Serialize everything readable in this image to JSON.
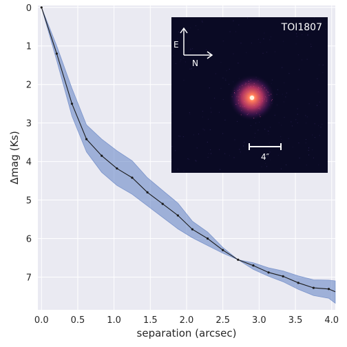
{
  "chart_data": {
    "type": "line",
    "xlabel": "separation (arcsec)",
    "ylabel": "Δmag (Ks)",
    "xlim": [
      -0.05,
      4.05
    ],
    "ylim": [
      7.85,
      -0.05
    ],
    "y_inverted": true,
    "grid": true,
    "x_ticks": [
      0.0,
      0.5,
      1.0,
      1.5,
      2.0,
      2.5,
      3.0,
      3.5,
      4.0
    ],
    "x_tick_labels": [
      "0.0",
      "0.5",
      "1.0",
      "1.5",
      "2.0",
      "2.5",
      "3.0",
      "3.5",
      "4.0"
    ],
    "y_ticks": [
      0,
      1,
      2,
      3,
      4,
      5,
      6,
      7
    ],
    "y_tick_labels": [
      "0",
      "1",
      "2",
      "3",
      "4",
      "5",
      "6",
      "7"
    ],
    "series": [
      {
        "x": [
          0.0,
          0.21,
          0.42,
          0.62,
          0.83,
          1.04,
          1.25,
          1.46,
          1.67,
          1.88,
          2.08,
          2.29,
          2.5,
          2.71,
          2.92,
          3.13,
          3.33,
          3.54,
          3.75,
          3.96,
          4.05
        ],
        "y": [
          0.0,
          1.2,
          2.5,
          3.42,
          3.85,
          4.18,
          4.42,
          4.8,
          5.1,
          5.4,
          5.76,
          6.0,
          6.3,
          6.55,
          6.7,
          6.88,
          6.98,
          7.15,
          7.28,
          7.31,
          7.38
        ],
        "y_low": [
          0.0,
          1.0,
          2.1,
          3.05,
          3.42,
          3.72,
          3.98,
          4.42,
          4.75,
          5.08,
          5.55,
          5.83,
          6.23,
          6.55,
          6.63,
          6.76,
          6.84,
          6.97,
          7.07,
          7.08,
          7.1
        ],
        "y_high": [
          0.0,
          1.38,
          2.82,
          3.75,
          4.28,
          4.62,
          4.85,
          5.15,
          5.45,
          5.75,
          5.98,
          6.18,
          6.38,
          6.55,
          6.8,
          6.98,
          7.12,
          7.32,
          7.48,
          7.55,
          7.68
        ]
      }
    ],
    "colors": {
      "background": "#eaeaf2",
      "grid": "#ffffff",
      "band": "#5f7fc2",
      "line": "#1a1a1a",
      "inset_bg": "#0a0a24",
      "star_glow": "#c83a6a",
      "star_core": "#ffd8a0",
      "inset_text": "#ffffff"
    },
    "inset": {
      "title": "TOI1807",
      "compass_e": "E",
      "compass_n": "N",
      "scale_label": "4″"
    }
  }
}
